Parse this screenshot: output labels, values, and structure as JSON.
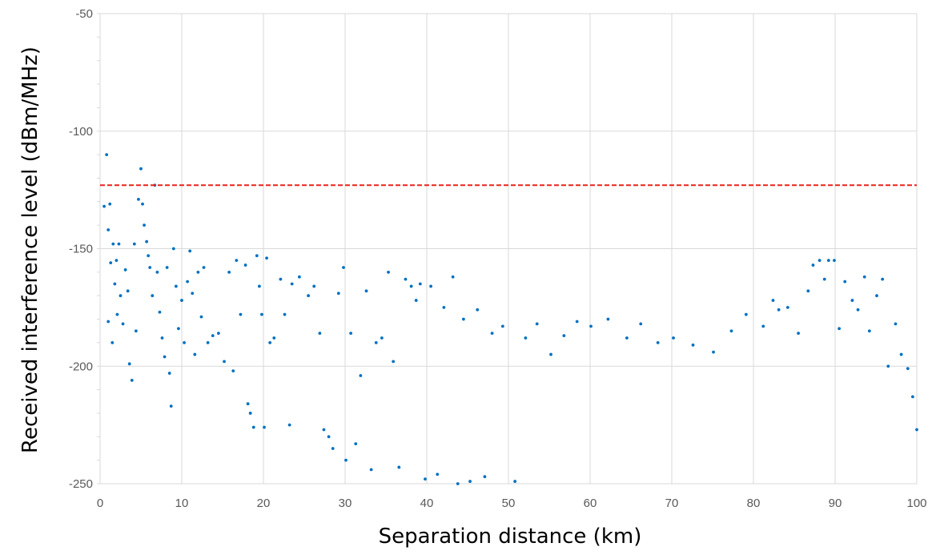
{
  "chart_data": {
    "type": "scatter",
    "title": "",
    "xlabel": "Separation distance (km)",
    "ylabel": "Received interference level (dBm/MHz)",
    "xlim": [
      0,
      100
    ],
    "ylim": [
      -250,
      -50
    ],
    "x_ticks": [
      "0",
      "10",
      "20",
      "30",
      "40",
      "50",
      "60",
      "70",
      "80",
      "90",
      "100"
    ],
    "y_ticks": [
      "-50",
      "-100",
      "-150",
      "-200",
      "-250"
    ],
    "x_tick_values": [
      0,
      10,
      20,
      30,
      40,
      50,
      60,
      70,
      80,
      90,
      100
    ],
    "y_tick_values": [
      -50,
      -100,
      -150,
      -200,
      -250
    ],
    "grid": true,
    "legend": "none",
    "threshold": {
      "y": -123,
      "color": "#e8231b",
      "style": "dashed"
    },
    "series": [
      {
        "color": "#0070c0",
        "points": [
          [
            0.8,
            -110
          ],
          [
            0.5,
            -132
          ],
          [
            1.2,
            -131
          ],
          [
            1,
            -142
          ],
          [
            1.6,
            -148
          ],
          [
            1.3,
            -156
          ],
          [
            2,
            -155
          ],
          [
            1.8,
            -165
          ],
          [
            1,
            -181
          ],
          [
            1.5,
            -190
          ],
          [
            2.3,
            -148
          ],
          [
            2.5,
            -170
          ],
          [
            2.1,
            -178
          ],
          [
            2.8,
            -182
          ],
          [
            3.1,
            -159
          ],
          [
            3.4,
            -168
          ],
          [
            3.6,
            -199
          ],
          [
            3.9,
            -206
          ],
          [
            4.2,
            -148
          ],
          [
            4.4,
            -185
          ],
          [
            4.7,
            -129
          ],
          [
            5,
            -116
          ],
          [
            5.2,
            -131
          ],
          [
            5.4,
            -140
          ],
          [
            5.7,
            -147
          ],
          [
            5.9,
            -153
          ],
          [
            6.1,
            -158
          ],
          [
            6.4,
            -170
          ],
          [
            6.7,
            -123
          ],
          [
            7,
            -160
          ],
          [
            7.3,
            -177
          ],
          [
            7.6,
            -188
          ],
          [
            7.9,
            -196
          ],
          [
            8.2,
            -158
          ],
          [
            8.5,
            -203
          ],
          [
            8.7,
            -217
          ],
          [
            9,
            -150
          ],
          [
            9.3,
            -166
          ],
          [
            9.6,
            -184
          ],
          [
            10,
            -172
          ],
          [
            10.3,
            -190
          ],
          [
            10.7,
            -164
          ],
          [
            11,
            -151
          ],
          [
            11.3,
            -169
          ],
          [
            11.6,
            -195
          ],
          [
            12,
            -160
          ],
          [
            12.4,
            -179
          ],
          [
            12.7,
            -158
          ],
          [
            13.2,
            -190
          ],
          [
            13.8,
            -187
          ],
          [
            14.5,
            -186
          ],
          [
            15.2,
            -198
          ],
          [
            15.8,
            -160
          ],
          [
            16.3,
            -202
          ],
          [
            16.7,
            -155
          ],
          [
            17.2,
            -178
          ],
          [
            17.8,
            -157
          ],
          [
            18.1,
            -216
          ],
          [
            18.4,
            -220
          ],
          [
            18.8,
            -226
          ],
          [
            19.2,
            -153
          ],
          [
            19.5,
            -166
          ],
          [
            19.8,
            -178
          ],
          [
            20.1,
            -226
          ],
          [
            20.4,
            -154
          ],
          [
            20.8,
            -190
          ],
          [
            21.3,
            -188
          ],
          [
            22.1,
            -163
          ],
          [
            22.6,
            -178
          ],
          [
            23.2,
            -225
          ],
          [
            23.5,
            -165
          ],
          [
            24.4,
            -162
          ],
          [
            25.5,
            -170
          ],
          [
            26.2,
            -166
          ],
          [
            26.9,
            -186
          ],
          [
            27.4,
            -227
          ],
          [
            28,
            -230
          ],
          [
            28.5,
            -235
          ],
          [
            29.2,
            -169
          ],
          [
            29.8,
            -158
          ],
          [
            30.1,
            -240
          ],
          [
            30.7,
            -186
          ],
          [
            31.3,
            -233
          ],
          [
            31.9,
            -204
          ],
          [
            32.6,
            -168
          ],
          [
            33.2,
            -244
          ],
          [
            33.8,
            -190
          ],
          [
            34.5,
            -188
          ],
          [
            35.3,
            -160
          ],
          [
            35.9,
            -198
          ],
          [
            36.6,
            -243
          ],
          [
            37.4,
            -163
          ],
          [
            38.1,
            -166
          ],
          [
            38.7,
            -172
          ],
          [
            39.2,
            -165
          ],
          [
            39.8,
            -248
          ],
          [
            40.5,
            -166
          ],
          [
            41.3,
            -246
          ],
          [
            42.1,
            -175
          ],
          [
            43.2,
            -162
          ],
          [
            43.8,
            -250
          ],
          [
            44.5,
            -180
          ],
          [
            45.3,
            -249
          ],
          [
            46.2,
            -176
          ],
          [
            47.1,
            -247
          ],
          [
            48,
            -186
          ],
          [
            49.3,
            -183
          ],
          [
            50.8,
            -249
          ],
          [
            52.1,
            -188
          ],
          [
            53.5,
            -182
          ],
          [
            55.2,
            -195
          ],
          [
            56.8,
            -187
          ],
          [
            58.4,
            -181
          ],
          [
            60.1,
            -183
          ],
          [
            62.2,
            -180
          ],
          [
            64.5,
            -188
          ],
          [
            66.2,
            -182
          ],
          [
            68.3,
            -190
          ],
          [
            70.2,
            -188
          ],
          [
            72.6,
            -191
          ],
          [
            75.1,
            -194
          ],
          [
            77.3,
            -185
          ],
          [
            79.1,
            -178
          ],
          [
            81.2,
            -183
          ],
          [
            82.4,
            -172
          ],
          [
            83.1,
            -176
          ],
          [
            84.2,
            -175
          ],
          [
            85.5,
            -186
          ],
          [
            86.7,
            -168
          ],
          [
            87.3,
            -157
          ],
          [
            88.1,
            -155
          ],
          [
            88.7,
            -163
          ],
          [
            89.2,
            -155
          ],
          [
            89.9,
            -155
          ],
          [
            90.5,
            -184
          ],
          [
            91.2,
            -164
          ],
          [
            92.1,
            -172
          ],
          [
            92.8,
            -176
          ],
          [
            93.6,
            -162
          ],
          [
            94.2,
            -185
          ],
          [
            95.1,
            -170
          ],
          [
            95.8,
            -163
          ],
          [
            96.5,
            -200
          ],
          [
            97.4,
            -182
          ],
          [
            98.1,
            -195
          ],
          [
            98.9,
            -201
          ],
          [
            99.5,
            -213
          ],
          [
            100,
            -227
          ]
        ]
      }
    ]
  }
}
